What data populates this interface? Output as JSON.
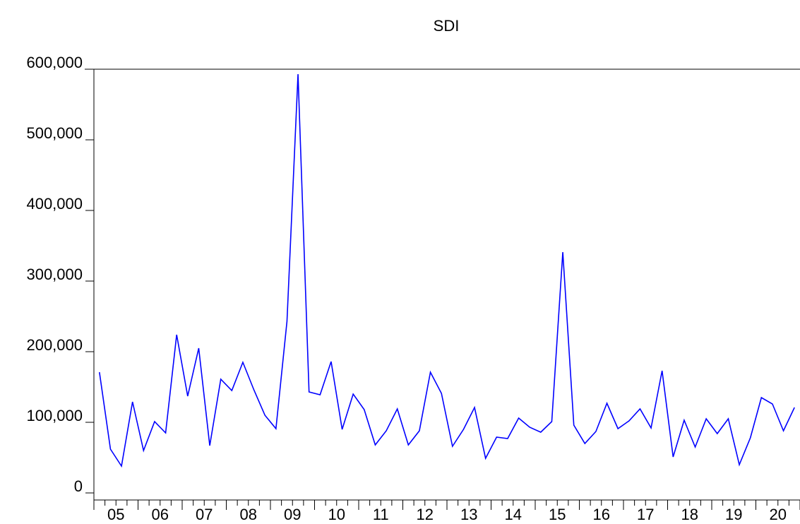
{
  "chart_data": {
    "type": "line",
    "title": "SDI",
    "categories": [
      "05",
      null,
      null,
      null,
      "06",
      null,
      null,
      null,
      "07",
      null,
      null,
      null,
      "08",
      null,
      null,
      null,
      "09",
      null,
      null,
      null,
      "10",
      null,
      null,
      null,
      "11",
      null,
      null,
      null,
      "12",
      null,
      null,
      null,
      "13",
      null,
      null,
      null,
      "14",
      null,
      null,
      null,
      "15",
      null,
      null,
      null,
      "16",
      null,
      null,
      null,
      "17",
      null,
      null,
      null,
      "18",
      null,
      null,
      null,
      "19",
      null,
      null,
      null,
      "20",
      null,
      null,
      null
    ],
    "series": [
      {
        "name": "SDI",
        "color": "#0000ff",
        "values": [
          171000,
          62000,
          38000,
          129000,
          60000,
          101000,
          85000,
          224000,
          137000,
          205000,
          67000,
          161000,
          145000,
          185000,
          146000,
          110000,
          91000,
          243000,
          593000,
          143000,
          139000,
          186000,
          90000,
          140000,
          118000,
          68000,
          88000,
          119000,
          68000,
          88000,
          171000,
          141000,
          66000,
          90000,
          121000,
          49000,
          79000,
          77000,
          106000,
          93000,
          86000,
          101000,
          341000,
          96000,
          70000,
          87000,
          127000,
          91000,
          102000,
          119000,
          92000,
          173000,
          51000,
          103000,
          65000,
          105000,
          84000,
          105000,
          40000,
          78000,
          135000,
          126000,
          88000,
          121000
        ]
      }
    ],
    "ylim": [
      0,
      600000
    ],
    "yticks": [
      0,
      {
        "value": 100000,
        "label": "100,000"
      },
      {
        "value": 200000,
        "label": "200,000"
      },
      {
        "value": 300000,
        "label": "300,000"
      },
      {
        "value": 400000,
        "label": "400,000"
      },
      {
        "value": 500000,
        "label": "500,000"
      },
      {
        "value": 600000,
        "label": "600,000"
      }
    ],
    "grid": false
  }
}
